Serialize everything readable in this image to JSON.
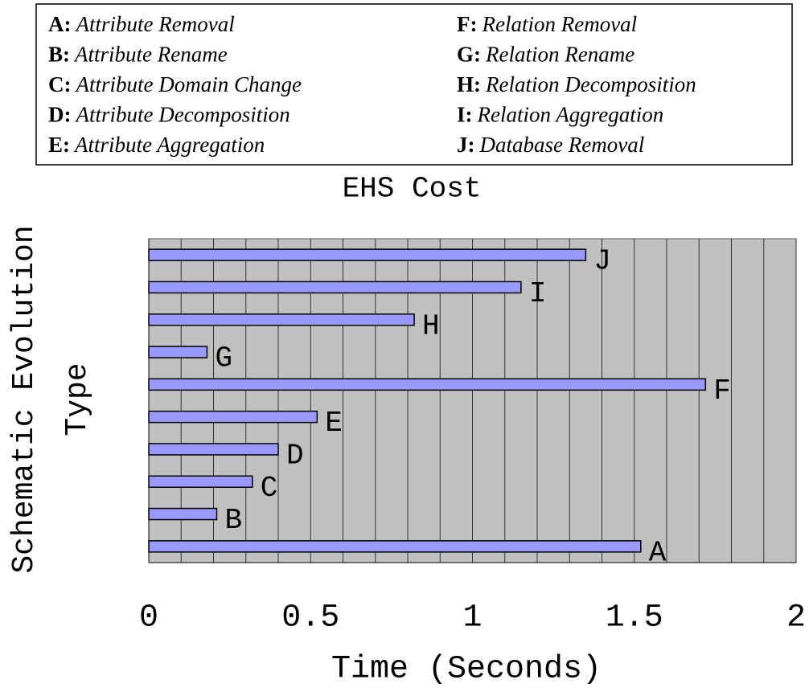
{
  "chart_data": {
    "type": "barh",
    "title": "EHS Cost",
    "xlabel": "Time (Seconds)",
    "ylabel": [
      "Schematic Evolution",
      "Type"
    ],
    "legend": [
      {
        "key": "A:",
        "label": "Attribute Removal"
      },
      {
        "key": "B:",
        "label": "Attribute Rename"
      },
      {
        "key": "C:",
        "label": "Attribute Domain Change"
      },
      {
        "key": "D:",
        "label": "Attribute Decomposition"
      },
      {
        "key": "E:",
        "label": "Attribute Aggregation"
      },
      {
        "key": "F:",
        "label": "Relation Removal"
      },
      {
        "key": "G:",
        "label": "Relation Rename"
      },
      {
        "key": "H:",
        "label": "Relation Decomposition"
      },
      {
        "key": "I:",
        "label": "Relation Aggregation"
      },
      {
        "key": "J:",
        "label": "Database Removal"
      }
    ],
    "categories": [
      "A",
      "B",
      "C",
      "D",
      "E",
      "F",
      "G",
      "H",
      "I",
      "J"
    ],
    "values": [
      1.52,
      0.21,
      0.32,
      0.4,
      0.52,
      1.72,
      0.18,
      0.82,
      1.15,
      1.35
    ],
    "color": "#9999ff",
    "xlim": [
      0,
      2
    ],
    "xticks": [
      0,
      0.5,
      1,
      1.5,
      2
    ],
    "xgrid": [
      0,
      0.1,
      0.2,
      0.3,
      0.4,
      0.5,
      0.6,
      0.7,
      0.8,
      0.9,
      1,
      1.1,
      1.2,
      1.3,
      1.4,
      1.5,
      1.6,
      1.7,
      1.8,
      1.9,
      2
    ],
    "grid": true,
    "background": "#c0c0c0"
  }
}
